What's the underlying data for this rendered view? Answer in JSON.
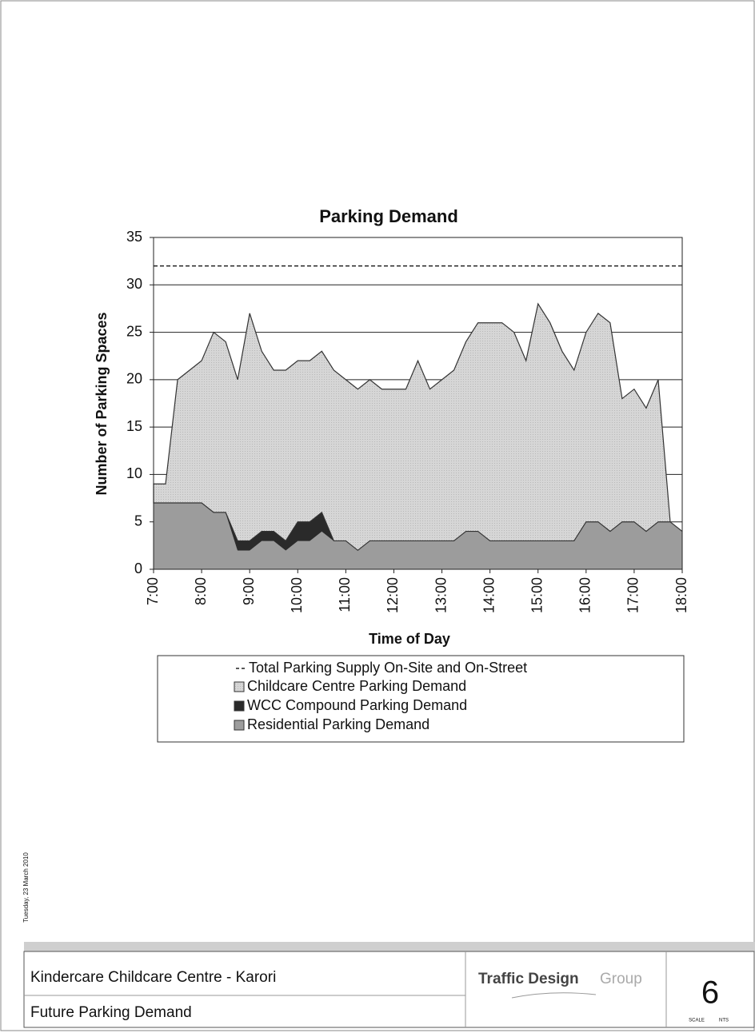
{
  "chart_data": {
    "type": "stacked_area",
    "title": "Parking Demand",
    "xlabel": "Time of Day",
    "ylabel": "Number of Parking Spaces",
    "x": [
      7,
      7.25,
      7.5,
      7.75,
      8,
      8.25,
      8.5,
      8.75,
      9,
      9.25,
      9.5,
      9.75,
      10,
      10.25,
      10.5,
      10.75,
      11,
      11.25,
      11.5,
      11.75,
      12,
      12.25,
      12.5,
      12.75,
      13,
      13.25,
      13.5,
      13.75,
      14,
      14.25,
      14.5,
      14.75,
      15,
      15.25,
      15.5,
      15.75,
      16,
      16.25,
      16.5,
      16.75,
      17,
      17.25,
      17.5,
      17.75,
      18
    ],
    "xlim": [
      7,
      18
    ],
    "xticks": [
      {
        "value": 7,
        "label": "7:00"
      },
      {
        "value": 8,
        "label": "8:00"
      },
      {
        "value": 9,
        "label": "9:00"
      },
      {
        "value": 10,
        "label": "10:00"
      },
      {
        "value": 11,
        "label": "11:00"
      },
      {
        "value": 12,
        "label": "12:00"
      },
      {
        "value": 13,
        "label": "13:00"
      },
      {
        "value": 14,
        "label": "14:00"
      },
      {
        "value": 15,
        "label": "15:00"
      },
      {
        "value": 16,
        "label": "16:00"
      },
      {
        "value": 17,
        "label": "17:00"
      },
      {
        "value": 18,
        "label": "18:00"
      }
    ],
    "ylim": [
      0,
      35
    ],
    "yticks": [
      0,
      5,
      10,
      15,
      20,
      25,
      30,
      35
    ],
    "grid": true,
    "reference_line": {
      "name": "Total Parking Supply On-Site and On-Street",
      "value": 32,
      "color": "#222222"
    },
    "series": [
      {
        "name": "Childcare Centre Parking Demand",
        "color": "#d2d2d2",
        "values": [
          2,
          2,
          13,
          14,
          15,
          19,
          18,
          17,
          24,
          19,
          17,
          18,
          17,
          17,
          17,
          18,
          17,
          17,
          17,
          16,
          16,
          16,
          19,
          16,
          17,
          18,
          20,
          22,
          23,
          23,
          22,
          19,
          25,
          23,
          20,
          18,
          20,
          22,
          22,
          13,
          14,
          13,
          15,
          0,
          0
        ]
      },
      {
        "name": "WCC Compound Parking Demand",
        "color": "#2a2a2a",
        "values": [
          0,
          0,
          0,
          0,
          0,
          0,
          0,
          1,
          1,
          1,
          1,
          1,
          2,
          2,
          2,
          0,
          0,
          0,
          0,
          0,
          0,
          0,
          0,
          0,
          0,
          0,
          0,
          0,
          0,
          0,
          0,
          0,
          0,
          0,
          0,
          0,
          0,
          0,
          0,
          0,
          0,
          0,
          0,
          0,
          0
        ]
      },
      {
        "name": "Residential Parking Demand",
        "color": "#9c9c9c",
        "values": [
          7,
          7,
          7,
          7,
          7,
          6,
          6,
          2,
          2,
          3,
          3,
          2,
          3,
          3,
          4,
          3,
          3,
          2,
          3,
          3,
          3,
          3,
          3,
          3,
          3,
          3,
          4,
          4,
          3,
          3,
          3,
          3,
          3,
          3,
          3,
          3,
          5,
          5,
          4,
          5,
          5,
          4,
          5,
          5,
          4
        ]
      }
    ]
  },
  "side_note": "Tuesday, 23 March 2010",
  "footer": {
    "project": "Kindercare Childcare Centre - Karori",
    "drawing": "Future Parking Demand",
    "logo_main": "Traffic Design",
    "logo_accent": "Group",
    "sheet": "6",
    "scale_label": "SCALE",
    "scale": "NTS"
  }
}
